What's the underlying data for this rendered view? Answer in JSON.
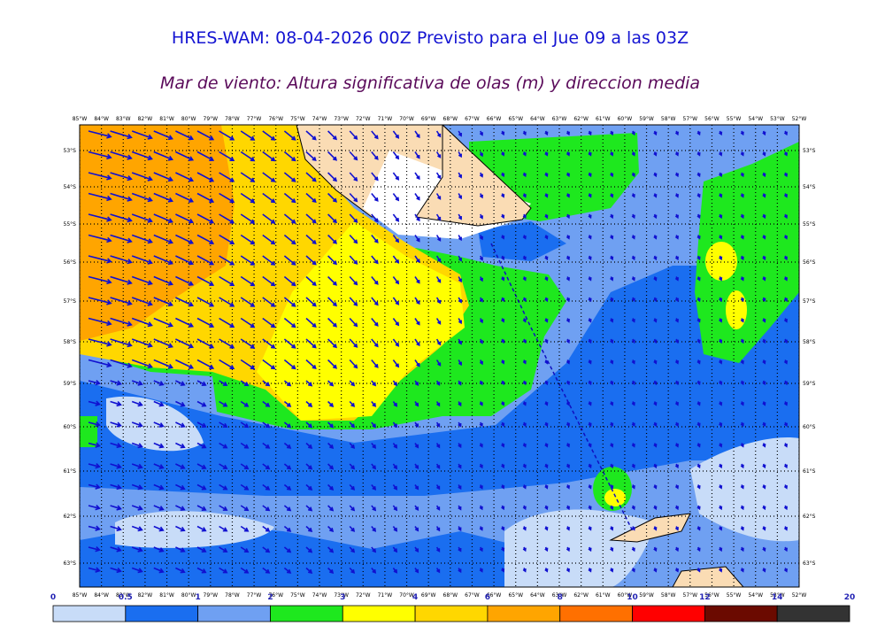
{
  "header": {
    "title": "HRES-WAM: 08-04-2026 00Z Previsto para el Jue 09 a las 03Z",
    "subtitle": "Mar de viento: Altura significativa de olas (m) y direccion media"
  },
  "map": {
    "longitude_labels": [
      "85°W",
      "84°W",
      "83°W",
      "82°W",
      "81°W",
      "80°W",
      "79°W",
      "78°W",
      "77°W",
      "76°W",
      "75°W",
      "74°W",
      "73°W",
      "72°W",
      "71°W",
      "70°W",
      "69°W",
      "68°W",
      "67°W",
      "66°W",
      "65°W",
      "64°W",
      "63°W",
      "62°W",
      "61°W",
      "60°W",
      "59°W",
      "58°W",
      "57°W",
      "56°W",
      "55°W",
      "54°W",
      "53°W",
      "52°W"
    ],
    "latitude_labels": [
      "53°S",
      "54°S",
      "55°S",
      "56°S",
      "57°S",
      "58°S",
      "59°S",
      "60°S",
      "61°S",
      "62°S",
      "63°S"
    ]
  },
  "colorbar": {
    "ticks": [
      0,
      0.5,
      1,
      2,
      3,
      4,
      6,
      8,
      10,
      12,
      14,
      20
    ],
    "colors": [
      "#c8dcf8",
      "#1a6ef0",
      "#6fa0f2",
      "#1ee81e",
      "#ffff00",
      "#ffd700",
      "#ffa500",
      "#ff7000",
      "#ff0000",
      "#6b0a00",
      "#333333"
    ]
  }
}
